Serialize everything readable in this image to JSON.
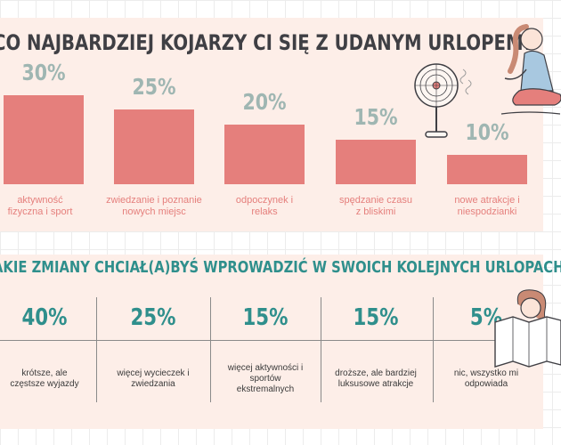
{
  "section1": {
    "title": "Co najbardziej kojarzy ci się z udanym urlopem?",
    "items": [
      {
        "pct": "30%",
        "label": "aktywność fizyczna i sport"
      },
      {
        "pct": "25%",
        "label": "zwiedzanie i poznanie nowych miejsc"
      },
      {
        "pct": "20%",
        "label": "odpoczynek i relaks"
      },
      {
        "pct": "15%",
        "label": "spędzanie czasu z bliskimi"
      },
      {
        "pct": "10%",
        "label": "nowe atrakcje i niespodzianki"
      }
    ]
  },
  "section2": {
    "title": "akie zmiany chciał(a)byś wprowadzić w swoich kolejnych urlopach?",
    "items": [
      {
        "pct": "40%",
        "label": "krótsze, ale częstsze wyjazdy"
      },
      {
        "pct": "25%",
        "label": "więcej wycieczek i zwiedzania"
      },
      {
        "pct": "15%",
        "label": "więcej aktywności i sportów ekstremalnych"
      },
      {
        "pct": "15%",
        "label": "droższe, ale bardziej luksusowe atrakcje"
      },
      {
        "pct": "5%",
        "label": "nic, wszystko mi odpowiada"
      }
    ]
  },
  "colors": {
    "panel": "#fdeee8",
    "bar": "#e57f7c",
    "pct_section1": "#9fb6b2",
    "title_section1": "#3f3f44",
    "accent_section2": "#2f8f8c"
  },
  "chart_data": [
    {
      "type": "bar",
      "title": "Co najbardziej kojarzy ci się z udanym urlopem?",
      "categories": [
        "aktywność fizyczna i sport",
        "zwiedzanie i poznanie nowych miejsc",
        "odpoczynek i relaks",
        "spędzanie czasu z bliskimi",
        "nowe atrakcje i niespodzianki"
      ],
      "values": [
        30,
        25,
        20,
        15,
        10
      ],
      "ylim": [
        0,
        30
      ],
      "grid": false
    },
    {
      "type": "table",
      "title": "akie zmiany chciał(a)byś wprowadzić w swoich kolejnych urlopach?",
      "categories": [
        "krótsze, ale częstsze wyjazdy",
        "więcej wycieczek i zwiedzania",
        "więcej aktywności i sportów ekstremalnych",
        "droższe, ale bardziej luksusowe atrakcje",
        "nic, wszystko mi odpowiada"
      ],
      "values": [
        40,
        25,
        15,
        15,
        5
      ]
    }
  ]
}
